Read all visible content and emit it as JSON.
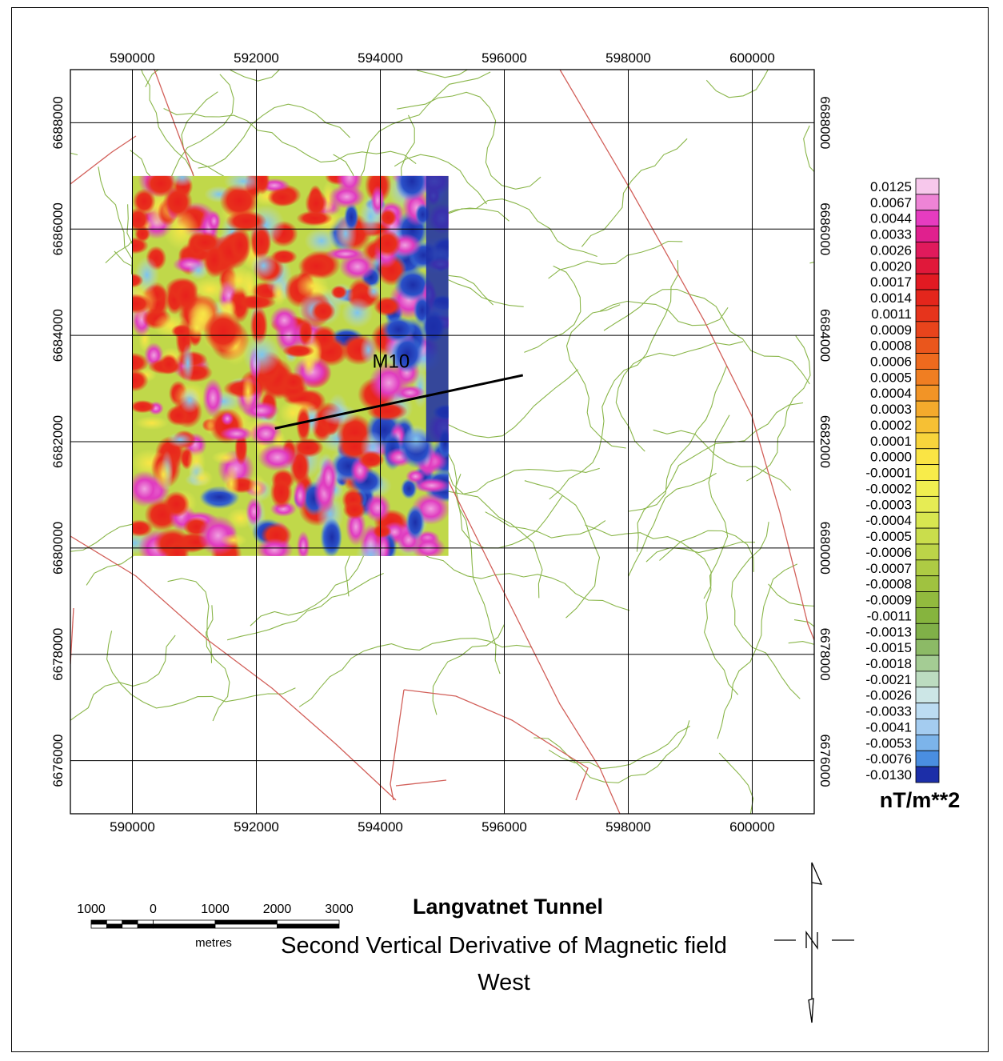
{
  "map": {
    "title": "Langvatnet Tunnel",
    "subtitle": "Second Vertical Derivative of Magnetic field",
    "subtitle_line2": "West",
    "profile_label": "M10",
    "x_ticks": [
      "590000",
      "592000",
      "594000",
      "596000",
      "598000",
      "600000"
    ],
    "y_ticks": [
      "6688000",
      "6686000",
      "6684000",
      "6682000",
      "6680000",
      "6678000",
      "6676000"
    ],
    "extent": {
      "x_min": 589000,
      "x_max": 601000,
      "y_min": 6675000,
      "y_max": 6689000
    },
    "survey_extent": {
      "x_min": 590000,
      "x_max": 595100,
      "y_min": 6679850,
      "y_max": 6687000
    },
    "profile_line": {
      "x1": 592300,
      "y1": 6682250,
      "x2": 596300,
      "y2": 6683250
    }
  },
  "legend": {
    "units": "nT/m**2",
    "entries": [
      {
        "label": "0.0125",
        "color": "#f7c8ec"
      },
      {
        "label": "0.0067",
        "color": "#ee84d6"
      },
      {
        "label": "0.0044",
        "color": "#e63cc0"
      },
      {
        "label": "0.0033",
        "color": "#e0208e"
      },
      {
        "label": "0.0026",
        "color": "#e01a5c"
      },
      {
        "label": "0.0020",
        "color": "#e0183a"
      },
      {
        "label": "0.0017",
        "color": "#e21a22"
      },
      {
        "label": "0.0014",
        "color": "#e4261c"
      },
      {
        "label": "0.0011",
        "color": "#e6341c"
      },
      {
        "label": "0.0009",
        "color": "#e8441c"
      },
      {
        "label": "0.0008",
        "color": "#ea561c"
      },
      {
        "label": "0.0006",
        "color": "#ee6a1e"
      },
      {
        "label": "0.0005",
        "color": "#f07e22"
      },
      {
        "label": "0.0004",
        "color": "#f29426"
      },
      {
        "label": "0.0003",
        "color": "#f4aa2c"
      },
      {
        "label": "0.0002",
        "color": "#f6c034"
      },
      {
        "label": "0.0001",
        "color": "#f8d43c"
      },
      {
        "label": "0.0000",
        "color": "#fae444"
      },
      {
        "label": "-0.0001",
        "color": "#f8ec4a"
      },
      {
        "label": "-0.0002",
        "color": "#f0ee50"
      },
      {
        "label": "-0.0003",
        "color": "#e6ec54"
      },
      {
        "label": "-0.0004",
        "color": "#d8e650"
      },
      {
        "label": "-0.0005",
        "color": "#cadd4c"
      },
      {
        "label": "-0.0006",
        "color": "#bcd448"
      },
      {
        "label": "-0.0007",
        "color": "#aecb44"
      },
      {
        "label": "-0.0008",
        "color": "#a0c240"
      },
      {
        "label": "-0.0009",
        "color": "#92ba3e"
      },
      {
        "label": "-0.0011",
        "color": "#86b43e"
      },
      {
        "label": "-0.0013",
        "color": "#80b048"
      },
      {
        "label": "-0.0015",
        "color": "#8cba66"
      },
      {
        "label": "-0.0018",
        "color": "#a4cc94"
      },
      {
        "label": "-0.0021",
        "color": "#bcdcc0"
      },
      {
        "label": "-0.0026",
        "color": "#cce6e6"
      },
      {
        "label": "-0.0033",
        "color": "#bcdcf2"
      },
      {
        "label": "-0.0041",
        "color": "#a4ccf0"
      },
      {
        "label": "-0.0053",
        "color": "#7cb4ea"
      },
      {
        "label": "-0.0076",
        "color": "#4a8ee0"
      },
      {
        "label": "-0.0130",
        "color": "#1c2ea8"
      }
    ]
  },
  "scale_bar": {
    "labels": [
      "1000",
      "0",
      "1000",
      "2000",
      "3000"
    ],
    "units": "metres"
  },
  "colors": {
    "grid": "#000000",
    "contour": "#8ab64a",
    "road": "#d2605a",
    "profile": "#000000"
  }
}
